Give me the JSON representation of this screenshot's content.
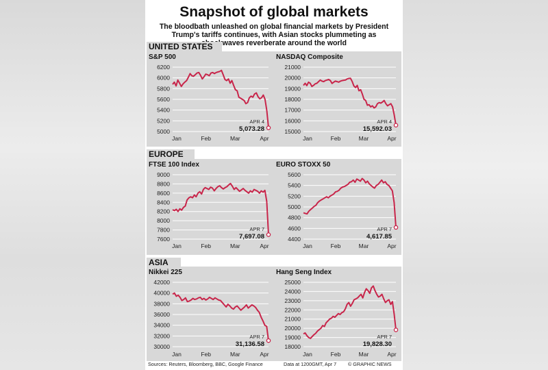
{
  "title": "Snapshot of global markets",
  "subtitle": "The bloodbath unleashed on global financial markets by President Trump's tariffs continues, with Asian stocks plummeting as shockwaves reverberate around the world",
  "regions": [
    "UNITED STATES",
    "EUROPE",
    "ASIA"
  ],
  "footer": {
    "sources": "Sources: Reuters, Bloomberg, BBC, Google Finance",
    "data_note": "Data at 1200GMT, Apr 7",
    "credit": "© GRAPHIC NEWS"
  },
  "colors": {
    "line": "#c8254a",
    "panel": "#d8d8d8",
    "tab": "#d8d8d8"
  },
  "chart_data": [
    {
      "type": "line",
      "title": "S&P 500",
      "region": "UNITED STATES",
      "xlabels": [
        "Jan",
        "Feb",
        "Mar",
        "Apr"
      ],
      "yticks": [
        5000,
        5200,
        5400,
        5600,
        5800,
        6000,
        6200
      ],
      "ylim": [
        5000,
        6200
      ],
      "label_date": "APR 4",
      "label_value": "5,073.28",
      "series": [
        5880,
        5920,
        5850,
        5960,
        5900,
        5840,
        5890,
        5920,
        5950,
        6010,
        6080,
        6040,
        6030,
        6060,
        6090,
        6100,
        6050,
        5980,
        6020,
        6070,
        6060,
        6040,
        6090,
        6100,
        6080,
        6100,
        6110,
        6120,
        6140,
        6060,
        5970,
        5950,
        5980,
        5900,
        5950,
        5860,
        5780,
        5760,
        5640,
        5620,
        5600,
        5580,
        5520,
        5540,
        5630,
        5660,
        5640,
        5700,
        5720,
        5650,
        5610,
        5630,
        5680,
        5600,
        5390,
        5070
      ]
    },
    {
      "type": "line",
      "title": "NASDAQ Composite",
      "region": "UNITED STATES",
      "xlabels": [
        "Jan",
        "Feb",
        "Mar",
        "Apr"
      ],
      "yticks": [
        15000,
        16000,
        17000,
        18000,
        19000,
        20000,
        21000
      ],
      "ylim": [
        15000,
        21000
      ],
      "label_date": "APR 4",
      "label_value": "15,592.03",
      "series": [
        19300,
        19500,
        19280,
        19600,
        19500,
        19200,
        19300,
        19450,
        19500,
        19650,
        19800,
        19700,
        19650,
        19750,
        19800,
        19850,
        19750,
        19480,
        19600,
        19700,
        19650,
        19600,
        19700,
        19750,
        19780,
        19800,
        19900,
        19950,
        19960,
        19650,
        19250,
        19100,
        19300,
        18800,
        18900,
        18500,
        18000,
        17900,
        17450,
        17500,
        17300,
        17400,
        17200,
        17300,
        17600,
        17700,
        17650,
        17750,
        17900,
        17600,
        17400,
        17500,
        17600,
        17300,
        16550,
        15590
      ]
    },
    {
      "type": "line",
      "title": "FTSE 100 Index",
      "region": "EUROPE",
      "xlabels": [
        "Jan",
        "Feb",
        "Mar",
        "Apr"
      ],
      "yticks": [
        7600,
        7800,
        8000,
        8200,
        8400,
        8600,
        8800,
        9000
      ],
      "ylim": [
        7600,
        9000
      ],
      "label_date": "APR 7",
      "label_value": "7,697.08",
      "series": [
        8240,
        8220,
        8250,
        8200,
        8260,
        8230,
        8290,
        8320,
        8450,
        8500,
        8520,
        8500,
        8560,
        8520,
        8600,
        8630,
        8580,
        8680,
        8720,
        8700,
        8680,
        8730,
        8710,
        8650,
        8700,
        8740,
        8760,
        8720,
        8690,
        8720,
        8740,
        8780,
        8810,
        8750,
        8680,
        8720,
        8680,
        8640,
        8670,
        8700,
        8660,
        8630,
        8600,
        8650,
        8620,
        8680,
        8660,
        8640,
        8600,
        8650,
        8620,
        8660,
        8420,
        7697
      ]
    },
    {
      "type": "line",
      "title": "EURO STOXX 50",
      "region": "EUROPE",
      "xlabels": [
        "Jan",
        "Feb",
        "Mar",
        "Apr"
      ],
      "yticks": [
        4400,
        4600,
        4800,
        5000,
        5200,
        5400,
        5600
      ],
      "ylim": [
        4400,
        5600
      ],
      "label_date": "APR 7",
      "label_value": "4,617.85",
      "series": [
        4890,
        4880,
        4870,
        4920,
        4950,
        4980,
        5010,
        5030,
        5080,
        5110,
        5130,
        5150,
        5170,
        5190,
        5170,
        5200,
        5220,
        5240,
        5280,
        5290,
        5310,
        5350,
        5370,
        5380,
        5400,
        5420,
        5460,
        5470,
        5500,
        5460,
        5520,
        5500,
        5480,
        5530,
        5500,
        5450,
        5480,
        5430,
        5400,
        5370,
        5350,
        5400,
        5420,
        5460,
        5500,
        5450,
        5470,
        5420,
        5400,
        5350,
        5300,
        5080,
        4618
      ]
    },
    {
      "type": "line",
      "title": "Nikkei 225",
      "region": "ASIA",
      "xlabels": [
        "Jan",
        "Feb",
        "Mar",
        "Apr"
      ],
      "yticks": [
        30000,
        32000,
        34000,
        36000,
        38000,
        40000,
        42000
      ],
      "ylim": [
        30000,
        42000
      ],
      "label_date": "APR 7",
      "label_value": "31,136.58",
      "series": [
        39800,
        40000,
        39400,
        39600,
        39200,
        38600,
        38800,
        39100,
        38400,
        38500,
        38700,
        39000,
        38800,
        38900,
        39100,
        39200,
        38800,
        39000,
        38700,
        38900,
        39200,
        39000,
        38800,
        39100,
        38900,
        38700,
        38600,
        38200,
        37800,
        37400,
        37900,
        37600,
        37200,
        37000,
        37400,
        37600,
        37200,
        36800,
        37100,
        37400,
        37800,
        37200,
        37500,
        37800,
        37600,
        37300,
        36800,
        36400,
        35500,
        34800,
        34000,
        33800,
        31137
      ]
    },
    {
      "type": "line",
      "title": "Hang Seng Index",
      "region": "ASIA",
      "xlabels": [
        "Jan",
        "Feb",
        "Mar",
        "Apr"
      ],
      "yticks": [
        18000,
        19000,
        20000,
        21000,
        22000,
        23000,
        24000,
        25000
      ],
      "ylim": [
        18000,
        25000
      ],
      "label_date": "APR 7",
      "label_value": "19,828.30",
      "series": [
        19400,
        19500,
        19200,
        19000,
        18900,
        19100,
        19300,
        19450,
        19700,
        19850,
        20000,
        20300,
        20200,
        20600,
        20800,
        21000,
        21100,
        21300,
        21200,
        21400,
        21600,
        21500,
        21700,
        21800,
        22100,
        22600,
        22800,
        22400,
        22700,
        23100,
        23200,
        23300,
        23500,
        23700,
        23300,
        23900,
        24300,
        24100,
        23800,
        24400,
        24600,
        24100,
        23700,
        23400,
        23500,
        23700,
        23200,
        22800,
        23000,
        23100,
        22600,
        22900,
        21500,
        19828
      ]
    }
  ]
}
